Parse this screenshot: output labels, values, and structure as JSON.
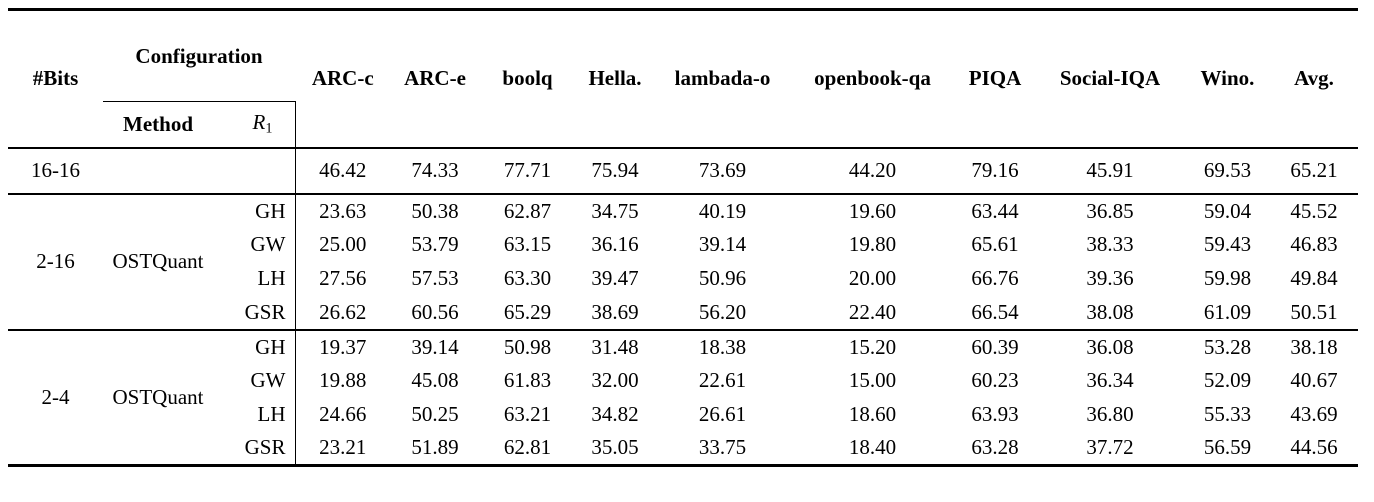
{
  "page": {
    "background": "#ffffff",
    "text_color": "#000000",
    "rule_color": "#000000"
  },
  "table": {
    "header": {
      "bits_label": "#Bits",
      "configuration_label": "Configuration",
      "method_label": "Method",
      "r1_base": "R",
      "r1_subscript": "1",
      "benchmarks": [
        "ARC-c",
        "ARC-e",
        "boolq",
        "Hella.",
        "lambada-o",
        "openbook-qa",
        "PIQA",
        "Social-IQA",
        "Wino.",
        "Avg."
      ]
    },
    "baseline": {
      "bits": "16-16",
      "method": "",
      "r1": "",
      "values": [
        "46.42",
        "74.33",
        "77.71",
        "75.94",
        "73.69",
        "44.20",
        "79.16",
        "45.91",
        "69.53",
        "65.21"
      ]
    },
    "groups": [
      {
        "bits": "2-16",
        "method": "OSTQuant",
        "rows": [
          {
            "r1": "GH",
            "values": [
              "23.63",
              "50.38",
              "62.87",
              "34.75",
              "40.19",
              "19.60",
              "63.44",
              "36.85",
              "59.04",
              "45.52"
            ]
          },
          {
            "r1": "GW",
            "values": [
              "25.00",
              "53.79",
              "63.15",
              "36.16",
              "39.14",
              "19.80",
              "65.61",
              "38.33",
              "59.43",
              "46.83"
            ]
          },
          {
            "r1": "LH",
            "values": [
              "27.56",
              "57.53",
              "63.30",
              "39.47",
              "50.96",
              "20.00",
              "66.76",
              "39.36",
              "59.98",
              "49.84"
            ]
          },
          {
            "r1": "GSR",
            "values": [
              "26.62",
              "60.56",
              "65.29",
              "38.69",
              "56.20",
              "22.40",
              "66.54",
              "38.08",
              "61.09",
              "50.51"
            ]
          }
        ]
      },
      {
        "bits": "2-4",
        "method": "OSTQuant",
        "rows": [
          {
            "r1": "GH",
            "values": [
              "19.37",
              "39.14",
              "50.98",
              "31.48",
              "18.38",
              "15.20",
              "60.39",
              "36.08",
              "53.28",
              "38.18"
            ]
          },
          {
            "r1": "GW",
            "values": [
              "19.88",
              "45.08",
              "61.83",
              "32.00",
              "22.61",
              "15.00",
              "60.23",
              "36.34",
              "52.09",
              "40.67"
            ]
          },
          {
            "r1": "LH",
            "values": [
              "24.66",
              "50.25",
              "63.21",
              "34.82",
              "26.61",
              "18.60",
              "63.93",
              "36.80",
              "55.33",
              "43.69"
            ]
          },
          {
            "r1": "GSR",
            "values": [
              "23.21",
              "51.89",
              "62.81",
              "35.05",
              "33.75",
              "18.40",
              "63.28",
              "37.72",
              "56.59",
              "44.56"
            ]
          }
        ]
      }
    ]
  }
}
